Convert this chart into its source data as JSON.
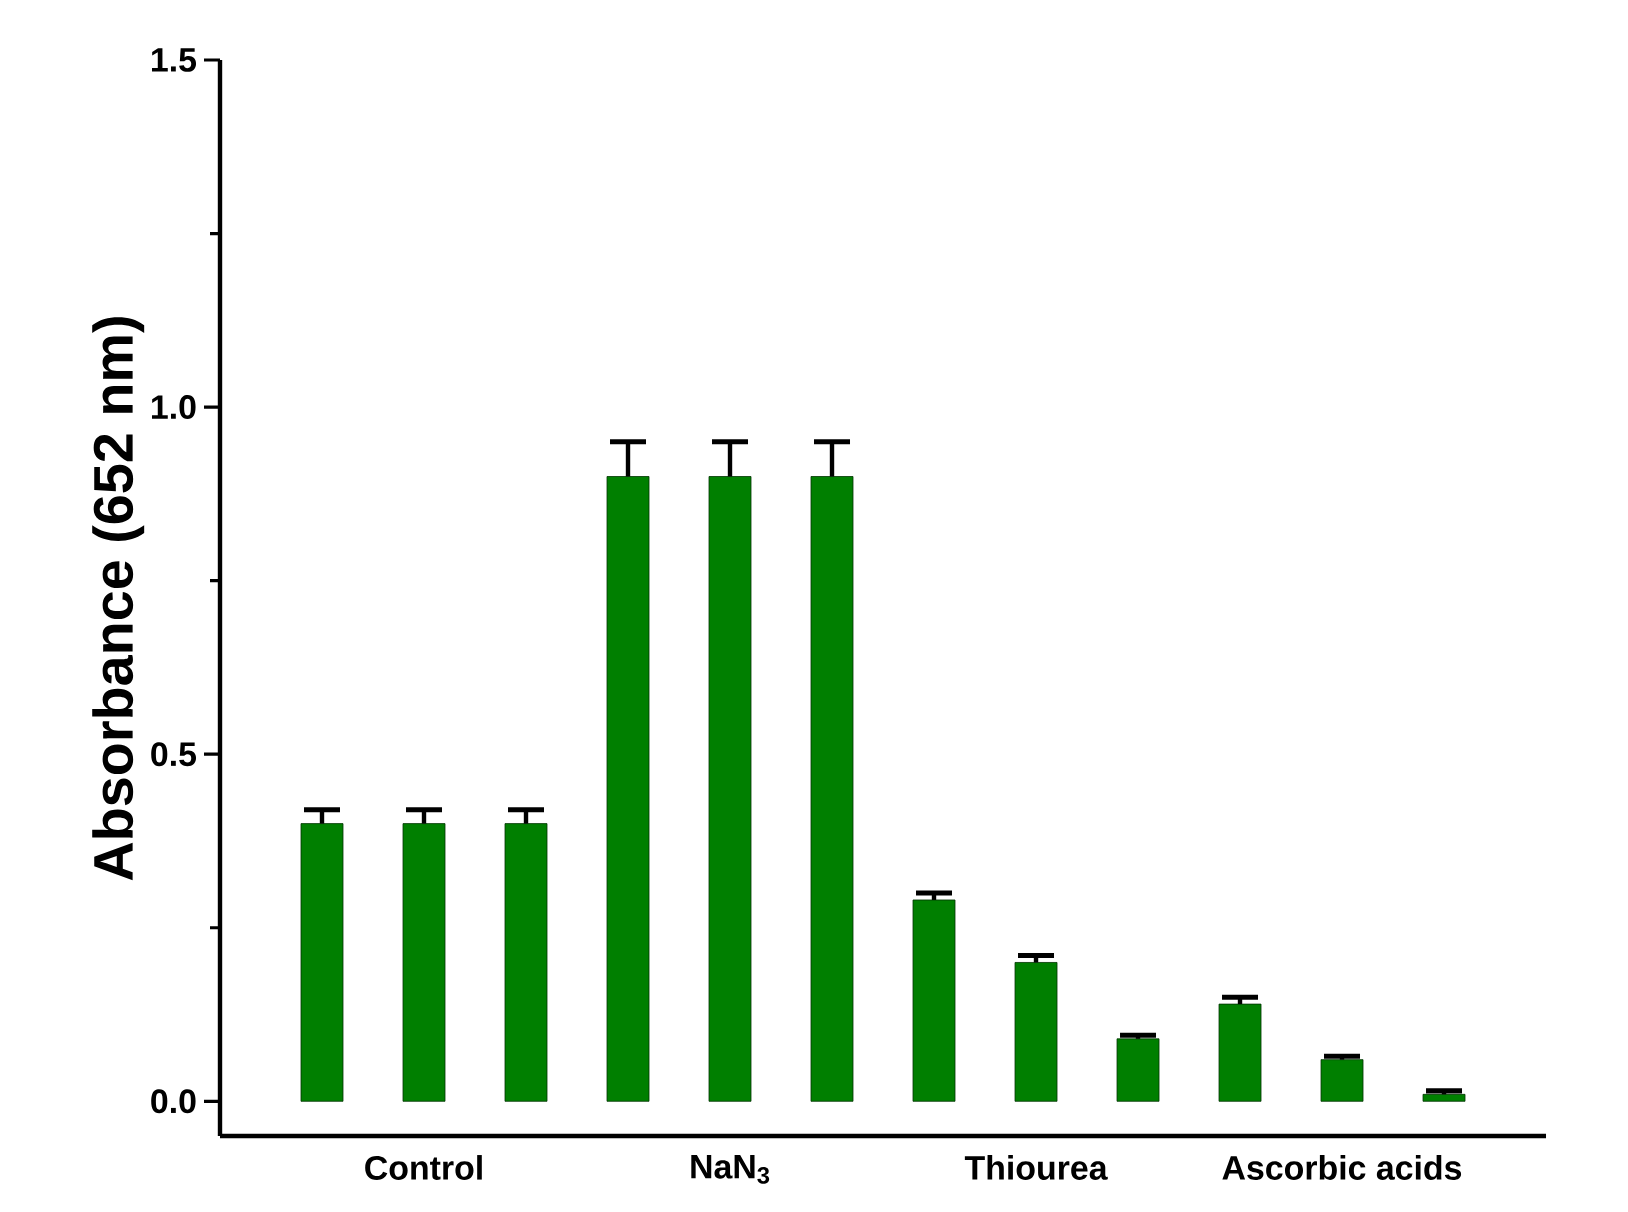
{
  "chart_data": {
    "type": "bar",
    "ylabel": "Absorbance (652 nm)",
    "categories": [
      null,
      "Control",
      null,
      null,
      "NaN$_{3}$",
      null,
      null,
      "Thiourea",
      null,
      null,
      "Ascorbic acids",
      null
    ],
    "values": [
      0.4,
      0.4,
      0.4,
      0.9,
      0.9,
      0.9,
      0.29,
      0.2,
      0.09,
      0.14,
      0.06,
      0.01
    ],
    "errors": [
      0.02,
      0.02,
      0.02,
      0.05,
      0.05,
      0.05,
      0.01,
      0.01,
      0.005,
      0.01,
      0.005,
      0.005
    ],
    "color": "#007f00",
    "ylim": [
      -0.05,
      1.5
    ],
    "yticks": [
      {
        "value": 0,
        "label": "0.0"
      },
      0.5,
      {
        "value": 1,
        "label": "1.0"
      },
      1.5
    ],
    "grid": false
  }
}
